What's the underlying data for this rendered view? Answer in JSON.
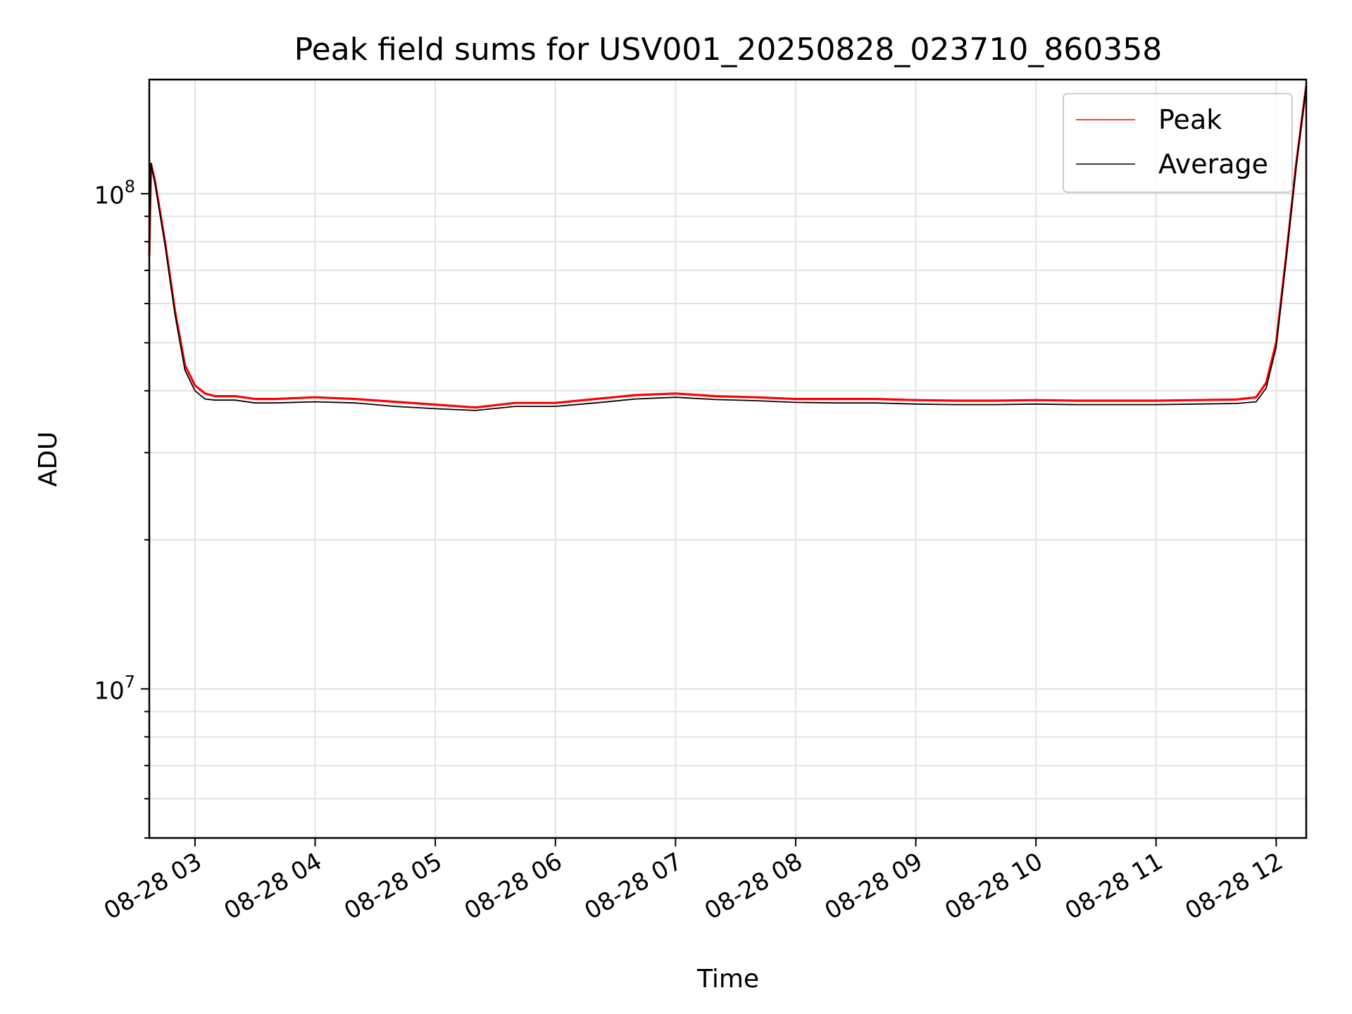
{
  "chart_data": {
    "type": "line",
    "title": "Peak field sums for USV001_20250828_023710_860358",
    "xlabel": "Time",
    "ylabel": "ADU",
    "yscale": "log",
    "ylim": [
      5000000,
      170000000
    ],
    "xlim": [
      "2025-08-28T02:37:10",
      "2025-08-28T12:15:00"
    ],
    "xticks": [
      {
        "t": "2025-08-28T03:00:00",
        "label": "08-28 03"
      },
      {
        "t": "2025-08-28T04:00:00",
        "label": "08-28 04"
      },
      {
        "t": "2025-08-28T05:00:00",
        "label": "08-28 05"
      },
      {
        "t": "2025-08-28T06:00:00",
        "label": "08-28 06"
      },
      {
        "t": "2025-08-28T07:00:00",
        "label": "08-28 07"
      },
      {
        "t": "2025-08-28T08:00:00",
        "label": "08-28 08"
      },
      {
        "t": "2025-08-28T09:00:00",
        "label": "08-28 09"
      },
      {
        "t": "2025-08-28T10:00:00",
        "label": "08-28 10"
      },
      {
        "t": "2025-08-28T11:00:00",
        "label": "08-28 11"
      },
      {
        "t": "2025-08-28T12:00:00",
        "label": "08-28 12"
      }
    ],
    "yticks": [
      {
        "v": 10000000,
        "base": "10",
        "exp": "7"
      },
      {
        "v": 100000000,
        "base": "10",
        "exp": "8"
      }
    ],
    "grid": true,
    "legend_position": "top-right",
    "series": [
      {
        "name": "Peak",
        "color": "#ff0000",
        "x": [
          "2025-08-28T02:37:10",
          "2025-08-28T02:38:00",
          "2025-08-28T02:40:00",
          "2025-08-28T02:45:00",
          "2025-08-28T02:50:00",
          "2025-08-28T02:55:00",
          "2025-08-28T03:00:00",
          "2025-08-28T03:05:00",
          "2025-08-28T03:10:00",
          "2025-08-28T03:20:00",
          "2025-08-28T03:30:00",
          "2025-08-28T03:40:00",
          "2025-08-28T04:00:00",
          "2025-08-28T04:20:00",
          "2025-08-28T04:40:00",
          "2025-08-28T05:00:00",
          "2025-08-28T05:20:00",
          "2025-08-28T05:40:00",
          "2025-08-28T06:00:00",
          "2025-08-28T06:20:00",
          "2025-08-28T06:40:00",
          "2025-08-28T07:00:00",
          "2025-08-28T07:20:00",
          "2025-08-28T07:40:00",
          "2025-08-28T08:00:00",
          "2025-08-28T08:20:00",
          "2025-08-28T08:40:00",
          "2025-08-28T09:00:00",
          "2025-08-28T09:20:00",
          "2025-08-28T09:40:00",
          "2025-08-28T10:00:00",
          "2025-08-28T10:20:00",
          "2025-08-28T10:40:00",
          "2025-08-28T11:00:00",
          "2025-08-28T11:20:00",
          "2025-08-28T11:40:00",
          "2025-08-28T11:50:00",
          "2025-08-28T11:55:00",
          "2025-08-28T12:00:00",
          "2025-08-28T12:05:00",
          "2025-08-28T12:10:00",
          "2025-08-28T12:15:00"
        ],
        "values": [
          75000000,
          115000000,
          106000000,
          80000000,
          58000000,
          45000000,
          41000000,
          39500000,
          39000000,
          39000000,
          38500000,
          38500000,
          38800000,
          38500000,
          38000000,
          37500000,
          37000000,
          37800000,
          37800000,
          38500000,
          39200000,
          39500000,
          39000000,
          38800000,
          38500000,
          38500000,
          38500000,
          38300000,
          38200000,
          38200000,
          38300000,
          38200000,
          38200000,
          38200000,
          38300000,
          38400000,
          38800000,
          41500000,
          50000000,
          75000000,
          115000000,
          165000000
        ]
      },
      {
        "name": "Average",
        "color": "#000000",
        "x": [
          "2025-08-28T02:37:10",
          "2025-08-28T02:38:00",
          "2025-08-28T02:40:00",
          "2025-08-28T02:45:00",
          "2025-08-28T02:50:00",
          "2025-08-28T02:55:00",
          "2025-08-28T03:00:00",
          "2025-08-28T03:05:00",
          "2025-08-28T03:10:00",
          "2025-08-28T03:20:00",
          "2025-08-28T03:30:00",
          "2025-08-28T03:40:00",
          "2025-08-28T04:00:00",
          "2025-08-28T04:20:00",
          "2025-08-28T04:40:00",
          "2025-08-28T05:00:00",
          "2025-08-28T05:20:00",
          "2025-08-28T05:40:00",
          "2025-08-28T06:00:00",
          "2025-08-28T06:20:00",
          "2025-08-28T06:40:00",
          "2025-08-28T07:00:00",
          "2025-08-28T07:20:00",
          "2025-08-28T07:40:00",
          "2025-08-28T08:00:00",
          "2025-08-28T08:20:00",
          "2025-08-28T08:40:00",
          "2025-08-28T09:00:00",
          "2025-08-28T09:20:00",
          "2025-08-28T09:40:00",
          "2025-08-28T10:00:00",
          "2025-08-28T10:20:00",
          "2025-08-28T10:40:00",
          "2025-08-28T11:00:00",
          "2025-08-28T11:20:00",
          "2025-08-28T11:40:00",
          "2025-08-28T11:50:00",
          "2025-08-28T11:55:00",
          "2025-08-28T12:00:00",
          "2025-08-28T12:05:00",
          "2025-08-28T12:10:00",
          "2025-08-28T12:15:00"
        ],
        "values": [
          75000000,
          115000000,
          105000000,
          79000000,
          57000000,
          44000000,
          40000000,
          38500000,
          38300000,
          38300000,
          37800000,
          37800000,
          38000000,
          37800000,
          37200000,
          36800000,
          36500000,
          37200000,
          37200000,
          37800000,
          38500000,
          38800000,
          38400000,
          38200000,
          37900000,
          37800000,
          37800000,
          37600000,
          37500000,
          37500000,
          37600000,
          37500000,
          37500000,
          37500000,
          37600000,
          37700000,
          38000000,
          40500000,
          49000000,
          74000000,
          114000000,
          165000000
        ]
      }
    ]
  }
}
